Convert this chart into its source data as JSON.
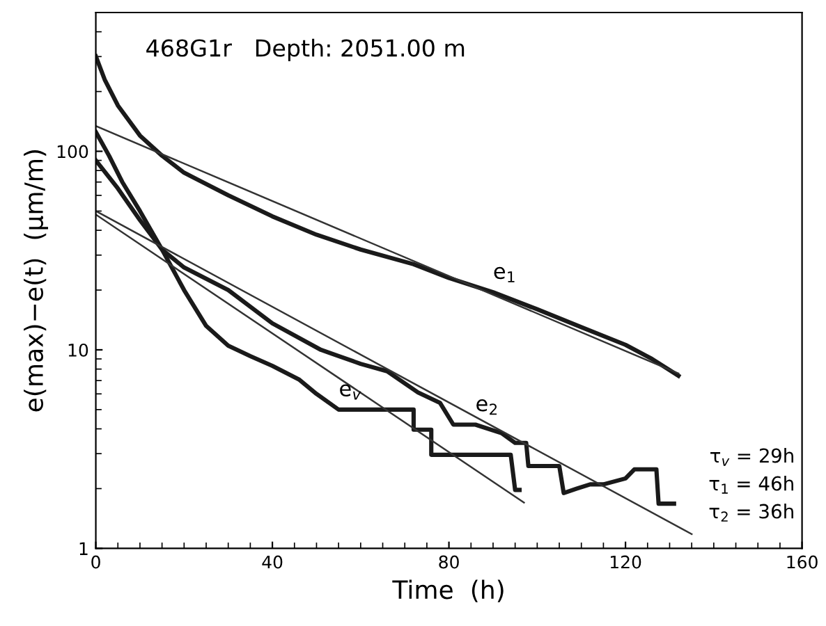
{
  "chart_data": {
    "type": "line",
    "title": "468G1r   Depth: 2051.00 m",
    "xlabel": "Time  (h)",
    "ylabel": "e(max)−e(t)  (μm/m)",
    "log": "y",
    "xlim": [
      0,
      160
    ],
    "xticks": [
      0,
      40,
      80,
      120,
      160
    ],
    "ylim": [
      1,
      500
    ],
    "yticks": [
      1,
      10,
      100
    ],
    "grid": false,
    "legend": false,
    "marker": "none",
    "series": [
      {
        "name": "e$_{1}$",
        "color": "#1a1a1a",
        "x": [
          0,
          2,
          5,
          10,
          15,
          20,
          30,
          40,
          50,
          60,
          72,
          80,
          90,
          100,
          110,
          120,
          126,
          132
        ],
        "values": [
          301,
          230,
          170,
          120,
          95,
          78,
          60,
          47,
          38,
          32,
          27,
          23,
          19.5,
          16,
          13,
          10.6,
          9,
          7.4
        ]
      },
      {
        "name": "e$_{2}$",
        "color": "#1a1a1a",
        "x": [
          0,
          5,
          10,
          15,
          20,
          30,
          40,
          51,
          60,
          66,
          73,
          78,
          81,
          86,
          92,
          95,
          97.5,
          98,
          105,
          106,
          109,
          112,
          115,
          120,
          122,
          127,
          127.5,
          131
        ],
        "values": [
          90,
          65,
          45,
          32,
          26,
          20,
          13.6,
          10,
          8.5,
          7.8,
          6.1,
          5.4,
          4.2,
          4.2,
          3.8,
          3.4,
          3.4,
          2.6,
          2.6,
          1.9,
          2.0,
          2.1,
          2.1,
          2.25,
          2.5,
          2.5,
          1.68,
          1.68
        ]
      },
      {
        "name": "e$_{v}$",
        "color": "#1a1a1a",
        "x": [
          0,
          3,
          6,
          10,
          15,
          20,
          25,
          30,
          35,
          40,
          46,
          50,
          55,
          72,
          72,
          76,
          76,
          94,
          95,
          96
        ],
        "values": [
          125,
          95,
          70,
          50,
          32,
          20,
          13.2,
          10.5,
          9.3,
          8.3,
          7.1,
          6.0,
          5.0,
          5.0,
          3.96,
          3.96,
          2.96,
          2.96,
          1.97,
          1.97
        ]
      },
      {
        "color": "#333333",
        "x": [
          0,
          132
        ],
        "values": [
          134,
          7.6
        ]
      },
      {
        "color": "#333333",
        "x": [
          0,
          135
        ],
        "values": [
          50,
          1.18
        ]
      },
      {
        "color": "#333333",
        "x": [
          0,
          97
        ],
        "values": [
          48,
          1.7
        ]
      }
    ],
    "annotations": [
      "τ$_{v}$ = 29h",
      "τ$_{1}$ = 46h",
      "τ$_{2}$ = 36h"
    ]
  }
}
